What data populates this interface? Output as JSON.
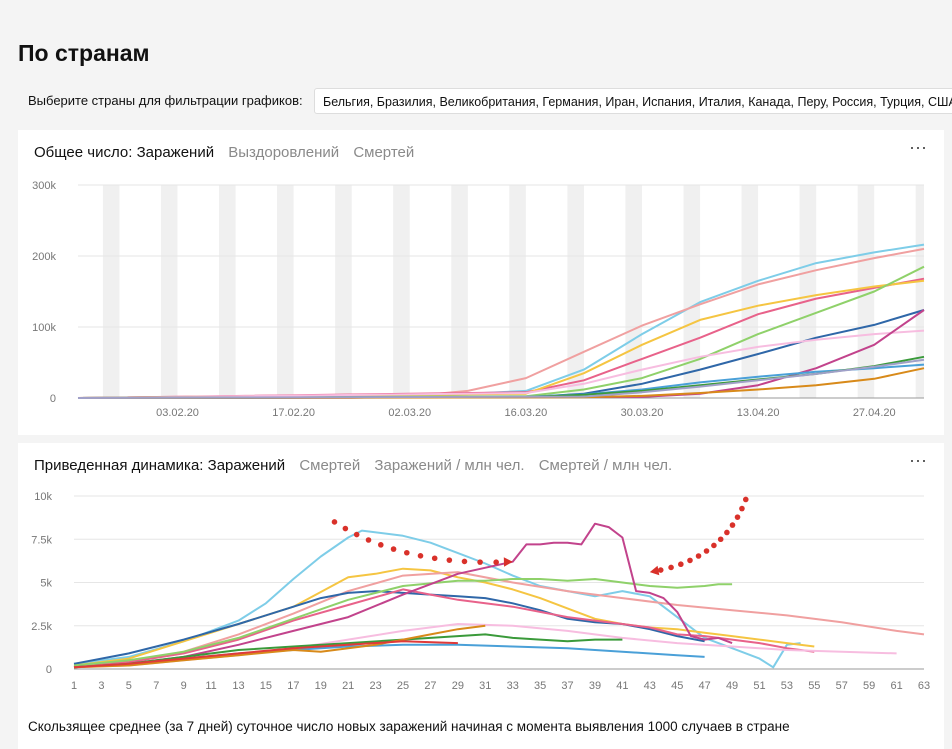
{
  "page": {
    "title": "По странам",
    "filter_label": "Выберите страны для фильтрации графиков:",
    "filter_value": "Бельгия, Бразилия, Великобритания, Германия, Иран, Испания, Италия, Канада, Перу, Россия, Турция, США",
    "footnote": "Скользящее среднее (за 7 дней) суточное число новых заражений начиная с момента выявления 1000 случаев в стране",
    "more_icon": "⋯"
  },
  "top_chart": {
    "tabs": [
      {
        "label": "Общее число: Заражений",
        "active": true
      },
      {
        "label": "Выздоровлений",
        "active": false
      },
      {
        "label": "Смертей",
        "active": false
      }
    ]
  },
  "bottom_chart": {
    "tabs": [
      {
        "label": "Приведенная динамика: Заражений",
        "active": true
      },
      {
        "label": "Смертей",
        "active": false
      },
      {
        "label": "Заражений / млн чел.",
        "active": false
      },
      {
        "label": "Смертей / млн чел.",
        "active": false
      }
    ]
  },
  "colors": {
    "red_annotation": "#d9312a",
    "weekend_band": "#f0f0f0",
    "grid": "#e6e6e6"
  },
  "chart_data": [
    {
      "type": "line",
      "title": "Общее число: Заражений",
      "x_unit": "date",
      "xlim": [
        "2020-01-22",
        "2020-05-03"
      ],
      "ylim": [
        0,
        300000
      ],
      "y_ticks": [
        0,
        100000,
        200000,
        300000
      ],
      "y_tick_labels": [
        "0",
        "100k",
        "200k",
        "300k"
      ],
      "x_ticks": [
        "2020-02-03",
        "2020-02-17",
        "2020-03-02",
        "2020-03-16",
        "2020-03-30",
        "2020-04-13",
        "2020-04-27"
      ],
      "x_tick_labels": [
        "03.02.20",
        "17.02.20",
        "02.03.20",
        "16.03.20",
        "30.03.20",
        "13.04.20",
        "27.04.20"
      ],
      "weekend_bands": true,
      "legend": false,
      "series": [
        {
          "color": "#7ecde8",
          "x": [
            "2020-01-22",
            "2020-03-02",
            "2020-03-16",
            "2020-03-23",
            "2020-03-30",
            "2020-04-06",
            "2020-04-13",
            "2020-04-20",
            "2020-04-27",
            "2020-05-03"
          ],
          "y": [
            0,
            2000,
            10000,
            40000,
            90000,
            135000,
            165000,
            190000,
            205000,
            216000
          ]
        },
        {
          "color": "#f0a0a0",
          "x": [
            "2020-01-22",
            "2020-02-24",
            "2020-03-02",
            "2020-03-09",
            "2020-03-16",
            "2020-03-23",
            "2020-03-30",
            "2020-04-06",
            "2020-04-13",
            "2020-04-20",
            "2020-04-27",
            "2020-05-03"
          ],
          "y": [
            0,
            200,
            2500,
            10000,
            28000,
            65000,
            102000,
            132000,
            160000,
            180000,
            197000,
            210000
          ]
        },
        {
          "color": "#e8628a",
          "x": [
            "2020-01-22",
            "2020-03-16",
            "2020-03-23",
            "2020-03-30",
            "2020-04-06",
            "2020-04-13",
            "2020-04-20",
            "2020-04-27",
            "2020-05-03"
          ],
          "y": [
            0,
            8000,
            25000,
            55000,
            85000,
            118000,
            140000,
            155000,
            168000
          ]
        },
        {
          "color": "#f5c542",
          "x": [
            "2020-01-22",
            "2020-03-16",
            "2020-03-23",
            "2020-03-30",
            "2020-04-06",
            "2020-04-13",
            "2020-04-20",
            "2020-04-27",
            "2020-05-03"
          ],
          "y": [
            0,
            6000,
            35000,
            75000,
            110000,
            130000,
            145000,
            157000,
            165000
          ]
        },
        {
          "color": "#8fd16a",
          "x": [
            "2020-01-22",
            "2020-03-16",
            "2020-03-23",
            "2020-03-30",
            "2020-04-06",
            "2020-04-13",
            "2020-04-20",
            "2020-04-27",
            "2020-05-03"
          ],
          "y": [
            0,
            2500,
            12000,
            28000,
            55000,
            90000,
            120000,
            150000,
            185000
          ]
        },
        {
          "color": "#2f67a8",
          "x": [
            "2020-01-22",
            "2020-03-16",
            "2020-03-23",
            "2020-03-30",
            "2020-04-06",
            "2020-04-13",
            "2020-04-20",
            "2020-04-27",
            "2020-05-03"
          ],
          "y": [
            0,
            1000,
            6000,
            20000,
            40000,
            62000,
            85000,
            103000,
            124000
          ]
        },
        {
          "color": "#f7bde0",
          "x": [
            "2020-01-22",
            "2020-03-16",
            "2020-03-23",
            "2020-03-30",
            "2020-04-06",
            "2020-04-13",
            "2020-04-20",
            "2020-04-27",
            "2020-05-03"
          ],
          "y": [
            0,
            7000,
            20000,
            40000,
            58000,
            72000,
            82000,
            90000,
            95000
          ]
        },
        {
          "color": "#c2438c",
          "x": [
            "2020-01-22",
            "2020-03-30",
            "2020-04-06",
            "2020-04-13",
            "2020-04-20",
            "2020-04-27",
            "2020-05-03"
          ],
          "y": [
            0,
            1500,
            6000,
            18000,
            42000,
            75000,
            124000
          ]
        },
        {
          "color": "#4aa0d8",
          "x": [
            "2020-01-22",
            "2020-03-16",
            "2020-03-23",
            "2020-03-30",
            "2020-04-06",
            "2020-04-13",
            "2020-04-20",
            "2020-04-27",
            "2020-05-03"
          ],
          "y": [
            0,
            1500,
            5000,
            12000,
            22000,
            30000,
            37000,
            42000,
            47000
          ]
        },
        {
          "color": "#3a9a3a",
          "x": [
            "2020-01-22",
            "2020-03-16",
            "2020-03-23",
            "2020-03-30",
            "2020-04-06",
            "2020-04-13",
            "2020-04-20",
            "2020-04-27",
            "2020-05-03"
          ],
          "y": [
            0,
            1200,
            4500,
            10000,
            18000,
            26000,
            34000,
            45000,
            58000
          ]
        },
        {
          "color": "#d88a1a",
          "x": [
            "2020-01-22",
            "2020-03-23",
            "2020-03-30",
            "2020-04-06",
            "2020-04-13",
            "2020-04-20",
            "2020-04-27",
            "2020-05-03"
          ],
          "y": [
            0,
            1000,
            3000,
            7000,
            12000,
            18000,
            27000,
            42000
          ]
        },
        {
          "color": "#a0a0c8",
          "x": [
            "2020-01-22",
            "2020-03-23",
            "2020-03-30",
            "2020-04-06",
            "2020-04-13",
            "2020-04-20",
            "2020-04-27",
            "2020-05-03"
          ],
          "y": [
            0,
            2000,
            8000,
            16000,
            25000,
            34000,
            44000,
            54000
          ]
        }
      ]
    },
    {
      "type": "line",
      "title": "Приведенная динамика: Заражений",
      "xlim": [
        1,
        63
      ],
      "x_ticks": [
        1,
        3,
        5,
        7,
        9,
        11,
        13,
        15,
        17,
        19,
        21,
        23,
        25,
        27,
        29,
        31,
        33,
        35,
        37,
        39,
        41,
        43,
        45,
        47,
        49,
        51,
        53,
        55,
        57,
        59,
        61,
        63
      ],
      "ylim": [
        0,
        10000
      ],
      "y_ticks": [
        0,
        2500,
        5000,
        7500,
        10000
      ],
      "y_tick_labels": [
        "0",
        "2.5k",
        "5k",
        "7.5k",
        "10k"
      ],
      "legend": false,
      "series": [
        {
          "color": "#7ecde8",
          "x": [
            1,
            5,
            9,
            11,
            13,
            15,
            17,
            19,
            21,
            22,
            25,
            27,
            29,
            31,
            33,
            35,
            37,
            39,
            41,
            43,
            45,
            47,
            49,
            51,
            52,
            53,
            54
          ],
          "y": [
            300,
            700,
            1600,
            2200,
            2800,
            3800,
            5200,
            6500,
            7600,
            8000,
            7700,
            7300,
            6700,
            6100,
            5400,
            4800,
            4500,
            4200,
            4500,
            4200,
            3000,
            1800,
            1200,
            600,
            100,
            1400,
            1500
          ]
        },
        {
          "color": "#f5c542",
          "x": [
            1,
            5,
            9,
            13,
            17,
            21,
            23,
            25,
            27,
            29,
            31,
            33,
            35,
            37,
            39,
            41,
            43,
            45,
            47,
            49,
            51,
            53,
            55
          ],
          "y": [
            200,
            600,
            1600,
            2600,
            3600,
            5300,
            5500,
            5800,
            5700,
            5300,
            5000,
            4600,
            4100,
            3500,
            2900,
            2600,
            2400,
            2300,
            2100,
            1900,
            1700,
            1500,
            1300
          ]
        },
        {
          "color": "#f0a0a0",
          "x": [
            1,
            5,
            9,
            13,
            17,
            21,
            25,
            29,
            33,
            37,
            41,
            45,
            49,
            53,
            57,
            61,
            63
          ],
          "y": [
            150,
            400,
            1000,
            2000,
            3200,
            4500,
            5400,
            5600,
            5000,
            4500,
            4100,
            3700,
            3400,
            3100,
            2700,
            2200,
            2000
          ]
        },
        {
          "color": "#2f67a8",
          "x": [
            1,
            5,
            9,
            13,
            17,
            19,
            21,
            23,
            25,
            27,
            29,
            31,
            33,
            35,
            37,
            39,
            41,
            43,
            45,
            47
          ],
          "y": [
            300,
            900,
            1700,
            2600,
            3600,
            4100,
            4400,
            4500,
            4400,
            4300,
            4200,
            4100,
            3800,
            3400,
            2900,
            2700,
            2600,
            2300,
            1900,
            1600
          ]
        },
        {
          "color": "#e8628a",
          "x": [
            1,
            5,
            9,
            13,
            17,
            21,
            25,
            27,
            29,
            31,
            33,
            35,
            37,
            39,
            41,
            43,
            45,
            47,
            49,
            51,
            53,
            55
          ],
          "y": [
            150,
            400,
            900,
            1700,
            2800,
            3700,
            4600,
            4300,
            4000,
            3800,
            3600,
            3300,
            3000,
            2800,
            2600,
            2400,
            2000,
            1900,
            1700,
            1500,
            1200,
            1000
          ]
        },
        {
          "color": "#8fd16a",
          "x": [
            1,
            5,
            9,
            13,
            17,
            21,
            25,
            29,
            31,
            33,
            35,
            37,
            39,
            41,
            43,
            45,
            47,
            48,
            49
          ],
          "y": [
            200,
            500,
            1000,
            1800,
            2900,
            4000,
            4800,
            5100,
            5100,
            5200,
            5200,
            5100,
            5200,
            5000,
            4800,
            4700,
            4800,
            4900,
            4900
          ]
        },
        {
          "color": "#c2438c",
          "x": [
            1,
            5,
            9,
            13,
            17,
            21,
            25,
            29,
            33,
            34,
            35,
            36,
            37,
            38,
            39,
            40,
            41,
            42,
            43,
            44,
            45,
            46,
            47,
            48,
            49
          ],
          "y": [
            100,
            300,
            700,
            1400,
            2200,
            3000,
            4300,
            5500,
            6200,
            7200,
            7200,
            7300,
            7300,
            7200,
            8400,
            8200,
            7600,
            4500,
            4400,
            4100,
            3300,
            1900,
            1700,
            1800,
            1500
          ]
        },
        {
          "color": "#f7bde0",
          "x": [
            1,
            5,
            9,
            13,
            17,
            21,
            25,
            29,
            33,
            37,
            41,
            45,
            49,
            53,
            57,
            61
          ],
          "y": [
            100,
            200,
            500,
            800,
            1200,
            1700,
            2200,
            2600,
            2500,
            2200,
            1800,
            1500,
            1300,
            1100,
            1000,
            900
          ]
        },
        {
          "color": "#4aa0d8",
          "x": [
            1,
            5,
            9,
            13,
            17,
            21,
            25,
            29,
            33,
            37,
            41,
            45,
            47
          ],
          "y": [
            100,
            300,
            600,
            900,
            1100,
            1300,
            1400,
            1400,
            1300,
            1200,
            1000,
            800,
            700
          ]
        },
        {
          "color": "#3a9a3a",
          "x": [
            1,
            5,
            9,
            13,
            17,
            21,
            25,
            29,
            31,
            33,
            35,
            37,
            39,
            41
          ],
          "y": [
            100,
            300,
            700,
            1100,
            1300,
            1500,
            1700,
            1900,
            2000,
            1800,
            1700,
            1600,
            1700,
            1700
          ]
        },
        {
          "color": "#d88a1a",
          "x": [
            1,
            5,
            9,
            13,
            17,
            19,
            21,
            23,
            25,
            27,
            29,
            31
          ],
          "y": [
            100,
            200,
            500,
            800,
            1100,
            1000,
            1200,
            1400,
            1700,
            2000,
            2300,
            2500
          ]
        },
        {
          "color": "#e03a3a",
          "x": [
            1,
            5,
            9,
            13,
            17,
            21,
            25,
            29
          ],
          "y": [
            100,
            300,
            600,
            900,
            1200,
            1400,
            1600,
            1500
          ]
        }
      ],
      "annotations": [
        {
          "type": "arrow",
          "color": "#d9312a",
          "style": "dotted",
          "from": [
            20,
            8500
          ],
          "to": [
            33,
            6200
          ]
        },
        {
          "type": "arrow",
          "color": "#d9312a",
          "style": "dotted",
          "from": [
            50,
            9800
          ],
          "to": [
            43,
            5600
          ]
        }
      ]
    }
  ]
}
